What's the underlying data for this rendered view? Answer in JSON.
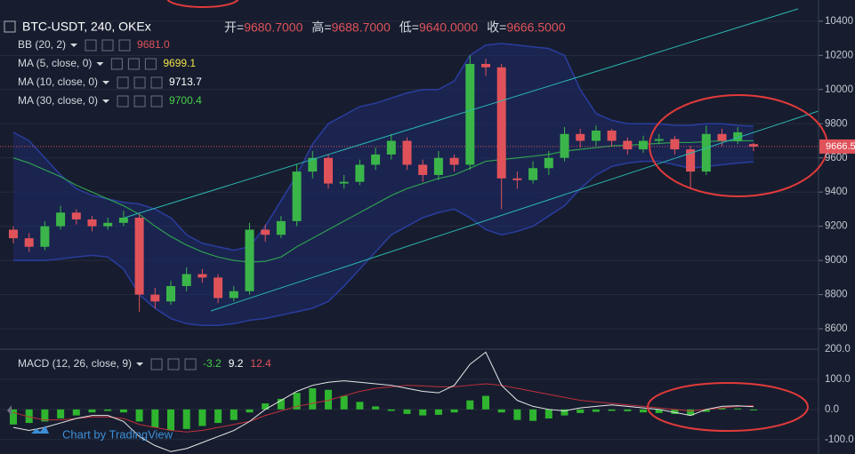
{
  "chart_data": [
    {
      "type": "candlestick",
      "title": "BTC-USDT, 240, OKEx",
      "stats": [
        {
          "label": "开=",
          "value": "9680.7000"
        },
        {
          "label": "高=",
          "value": "9688.7000"
        },
        {
          "label": "低=",
          "value": "9640.0000"
        },
        {
          "label": "收=",
          "value": "9666.5000"
        }
      ],
      "open": [
        9180,
        9130,
        9080,
        9200,
        9280,
        9240,
        9200,
        9220,
        9250,
        8800,
        8760,
        8850,
        8920,
        8900,
        8780,
        8820,
        9180,
        9150,
        9230,
        9520,
        9600,
        9450,
        9460,
        9560,
        9620,
        9700,
        9560,
        9500,
        9600,
        9560,
        10150,
        10130,
        9480,
        9470,
        9540,
        9600,
        9740,
        9700,
        9760,
        9700,
        9650,
        9700,
        9710,
        9650,
        9520,
        9740,
        9700,
        9680.7
      ],
      "high": [
        9200,
        9160,
        9230,
        9320,
        9300,
        9260,
        9250,
        9290,
        9270,
        8840,
        8880,
        8960,
        8950,
        8920,
        8850,
        9220,
        9210,
        9260,
        9560,
        9640,
        9620,
        9500,
        9590,
        9660,
        9740,
        9720,
        9590,
        9640,
        9620,
        10200,
        10180,
        10150,
        9520,
        9580,
        9640,
        9780,
        9770,
        9790,
        9770,
        9720,
        9730,
        9740,
        9730,
        9670,
        9790,
        9770,
        9780,
        9688.7
      ],
      "low": [
        9100,
        9050,
        9060,
        9180,
        9210,
        9170,
        9180,
        9200,
        8700,
        8720,
        8740,
        8820,
        8870,
        8750,
        8760,
        8800,
        9110,
        9130,
        9200,
        9480,
        9420,
        9420,
        9440,
        9530,
        9590,
        9530,
        9460,
        9470,
        9520,
        9530,
        10080,
        9300,
        9420,
        9450,
        9500,
        9580,
        9660,
        9670,
        9670,
        9620,
        9630,
        9680,
        9620,
        9420,
        9500,
        9670,
        9680,
        9640
      ],
      "close": [
        9130,
        9080,
        9200,
        9280,
        9240,
        9200,
        9220,
        9250,
        8800,
        8760,
        8850,
        8920,
        8900,
        8780,
        8820,
        9180,
        9150,
        9230,
        9520,
        9600,
        9450,
        9460,
        9560,
        9620,
        9700,
        9560,
        9500,
        9600,
        9560,
        10150,
        10130,
        9480,
        9470,
        9540,
        9600,
        9740,
        9700,
        9760,
        9700,
        9650,
        9700,
        9710,
        9650,
        9520,
        9740,
        9700,
        9750,
        9666.5
      ],
      "up_color": "#3bb54a",
      "down_color": "#e0525a",
      "indicators": [
        {
          "label": "BB (20, 2)",
          "readouts": [
            {
              "text": "9681.0",
              "color": "#e0525a"
            }
          ],
          "color": "#2a3d9e",
          "upper": [
            9750,
            9700,
            9600,
            9500,
            9420,
            9380,
            9360,
            9340,
            9330,
            9300,
            9250,
            9150,
            9100,
            9080,
            9060,
            9080,
            9200,
            9350,
            9500,
            9680,
            9800,
            9850,
            9900,
            9920,
            9950,
            9980,
            10000,
            10000,
            10050,
            10200,
            10260,
            10270,
            10260,
            10250,
            10240,
            10200,
            10000,
            9860,
            9820,
            9800,
            9800,
            9800,
            9790,
            9790,
            9800,
            9800,
            9790,
            9785
          ],
          "lower": [
            9000,
            9000,
            9000,
            9010,
            9020,
            9030,
            9020,
            8950,
            8800,
            8720,
            8660,
            8630,
            8620,
            8620,
            8630,
            8650,
            8660,
            8680,
            8700,
            8720,
            8760,
            8850,
            8950,
            9050,
            9150,
            9200,
            9250,
            9280,
            9300,
            9250,
            9180,
            9150,
            9170,
            9200,
            9260,
            9320,
            9420,
            9500,
            9550,
            9570,
            9580,
            9580,
            9560,
            9540,
            9550,
            9560,
            9570,
            9577
          ]
        },
        {
          "label": "MA (5, close, 0)",
          "readouts": [
            {
              "text": "9699.1",
              "color": "#f2e24a"
            }
          ]
        },
        {
          "label": "MA (10, close, 0)",
          "readouts": [
            {
              "text": "9713.7",
              "color": "#ffffff"
            }
          ]
        },
        {
          "label": "MA (30, close, 0)",
          "readouts": [
            {
              "text": "9700.4",
              "color": "#46d04a"
            }
          ],
          "color": "#2f9e50",
          "values": [
            9600,
            9570,
            9530,
            9490,
            9440,
            9400,
            9360,
            9320,
            9270,
            9200,
            9140,
            9090,
            9050,
            9020,
            9000,
            8990,
            8995,
            9020,
            9080,
            9130,
            9180,
            9230,
            9280,
            9330,
            9380,
            9420,
            9450,
            9480,
            9500,
            9540,
            9580,
            9590,
            9600,
            9610,
            9620,
            9640,
            9650,
            9660,
            9670,
            9675,
            9680,
            9685,
            9690,
            9690,
            9695,
            9700,
            9700,
            9700.4
          ]
        }
      ],
      "last_price": "9666.5",
      "ylim": [
        8486,
        10524
      ],
      "yticks": [
        8600,
        8800,
        9000,
        9200,
        9400,
        9600,
        9800,
        10000,
        10200,
        10400
      ]
    },
    {
      "type": "macd",
      "label": "MACD (12, 26, close, 9)",
      "readouts": [
        {
          "text": "-3.2",
          "color": "#46d04a"
        },
        {
          "text": "9.2",
          "color": "#ffffff"
        },
        {
          "text": "12.4",
          "color": "#e0525a"
        }
      ],
      "histogram": [
        -50,
        -45,
        -40,
        -30,
        -20,
        -10,
        -5,
        -10,
        -40,
        -60,
        -70,
        -65,
        -55,
        -45,
        -35,
        -10,
        20,
        35,
        55,
        70,
        65,
        45,
        25,
        10,
        -5,
        -15,
        -20,
        -18,
        -10,
        30,
        45,
        -10,
        -35,
        -38,
        -30,
        -20,
        -12,
        -8,
        -5,
        -6,
        -10,
        -12,
        -15,
        -20,
        -8,
        5,
        3,
        -3.2
      ],
      "macd": [
        -60,
        -70,
        -60,
        -45,
        -30,
        -20,
        -20,
        -40,
        -90,
        -120,
        -140,
        -130,
        -110,
        -90,
        -70,
        -40,
        0,
        30,
        60,
        80,
        90,
        95,
        90,
        85,
        80,
        70,
        60,
        55,
        80,
        150,
        190,
        80,
        30,
        10,
        0,
        -5,
        5,
        10,
        15,
        10,
        5,
        0,
        -10,
        -20,
        0,
        10,
        12,
        9.2
      ],
      "signal": [
        -10,
        -25,
        -35,
        -35,
        -30,
        -25,
        -25,
        -30,
        -50,
        -60,
        -70,
        -75,
        -70,
        -60,
        -50,
        -40,
        -20,
        -5,
        10,
        20,
        30,
        45,
        60,
        70,
        75,
        80,
        78,
        75,
        75,
        80,
        85,
        80,
        70,
        60,
        50,
        40,
        30,
        25,
        20,
        15,
        10,
        5,
        0,
        -5,
        0,
        5,
        10,
        12.4
      ],
      "hist_color": "#2fb52f",
      "macd_color": "#e8e8e8",
      "signal_color": "#c0303a",
      "ylim": [
        -148,
        200
      ],
      "yticks": [
        {
          "value": 200,
          "label": "200.0"
        },
        {
          "value": 100,
          "label": "100.0"
        },
        {
          "value": 0,
          "label": "0.0"
        },
        {
          "value": -100,
          "label": "-100.0"
        }
      ]
    }
  ],
  "watermark": "Chart by TradingView"
}
